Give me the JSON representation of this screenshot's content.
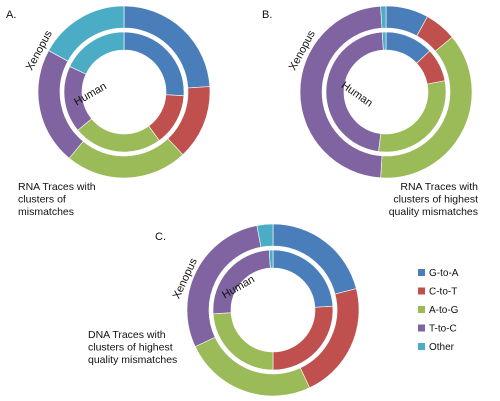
{
  "chart_data": [
    {
      "type": "doughnut",
      "panel_label": "A.",
      "caption": [
        "RNA Traces with",
        "clusters of",
        "mismatches"
      ],
      "ring_labels": {
        "outer": "Xenopus",
        "inner": "Human"
      },
      "categories": [
        "G-to-A",
        "C-to-T",
        "A-to-G",
        "T-to-C",
        "Other"
      ],
      "series": [
        {
          "name": "Xenopus",
          "ring": "outer",
          "values": [
            24,
            14,
            23,
            22,
            17
          ]
        },
        {
          "name": "Human",
          "ring": "inner",
          "values": [
            26,
            14,
            24,
            18,
            18
          ]
        }
      ]
    },
    {
      "type": "doughnut",
      "panel_label": "B.",
      "caption": [
        "RNA Traces with",
        "clusters of highest",
        "quality mismatches"
      ],
      "ring_labels": {
        "outer": "Xenopus",
        "inner": "Human"
      },
      "categories": [
        "G-to-A",
        "C-to-T",
        "A-to-G",
        "T-to-C",
        "Other"
      ],
      "series": [
        {
          "name": "Xenopus",
          "ring": "outer",
          "values": [
            8,
            6,
            37,
            48,
            1
          ]
        },
        {
          "name": "Human",
          "ring": "inner",
          "values": [
            13,
            9,
            30,
            47,
            1
          ]
        }
      ]
    },
    {
      "type": "doughnut",
      "panel_label": "C.",
      "caption": [
        "DNA Traces with",
        "clusters of highest",
        "quality mismatches"
      ],
      "ring_labels": {
        "outer": "Xenopus",
        "inner": "Human"
      },
      "categories": [
        "G-to-A",
        "C-to-T",
        "A-to-G",
        "T-to-C",
        "Other"
      ],
      "series": [
        {
          "name": "Xenopus",
          "ring": "outer",
          "values": [
            21,
            22,
            25,
            29,
            3
          ]
        },
        {
          "name": "Human",
          "ring": "inner",
          "values": [
            24,
            26,
            24,
            25,
            1
          ]
        }
      ]
    }
  ],
  "legend": {
    "items": [
      {
        "label": "G-to-A",
        "color": "#4a7ebb"
      },
      {
        "label": "C-to-T",
        "color": "#c0504d"
      },
      {
        "label": "A-to-G",
        "color": "#9bbb59"
      },
      {
        "label": "T-to-C",
        "color": "#8064a2"
      },
      {
        "label": "Other",
        "color": "#4bacc6"
      }
    ]
  }
}
